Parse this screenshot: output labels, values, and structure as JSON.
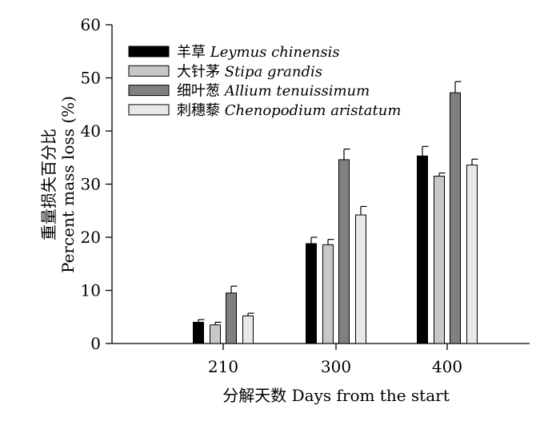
{
  "chart_data": {
    "type": "bar",
    "title": "",
    "xlabel": "分解天数 Days from the start",
    "ylabel_line1": "重量损失百分比",
    "ylabel_line2": "Percent mass loss (%)",
    "categories": [
      "210",
      "300",
      "400"
    ],
    "ylim": [
      0,
      60
    ],
    "yticks": [
      0,
      10,
      20,
      30,
      40,
      50,
      60
    ],
    "legend_position": "top-left",
    "series": [
      {
        "name_zh": "羊草",
        "name_latin": "Leymus chinensis",
        "color": "#000000",
        "values": [
          4.0,
          18.8,
          35.3
        ],
        "errors": [
          0.5,
          1.2,
          1.8
        ]
      },
      {
        "name_zh": "大针茅",
        "name_latin": "Stipa grandis",
        "color": "#c8c8c8",
        "values": [
          3.5,
          18.6,
          31.5
        ],
        "errors": [
          0.5,
          1.0,
          0.6
        ]
      },
      {
        "name_zh": "细叶葱",
        "name_latin": "Allium tenuissimum",
        "color": "#808080",
        "values": [
          9.5,
          34.6,
          47.2
        ],
        "errors": [
          1.3,
          2.0,
          2.1
        ]
      },
      {
        "name_zh": "刺穗藜",
        "name_latin": "Chenopodium aristatum",
        "color": "#e8e8e8",
        "values": [
          5.2,
          24.2,
          33.6
        ],
        "errors": [
          0.5,
          1.6,
          1.1
        ]
      }
    ]
  }
}
